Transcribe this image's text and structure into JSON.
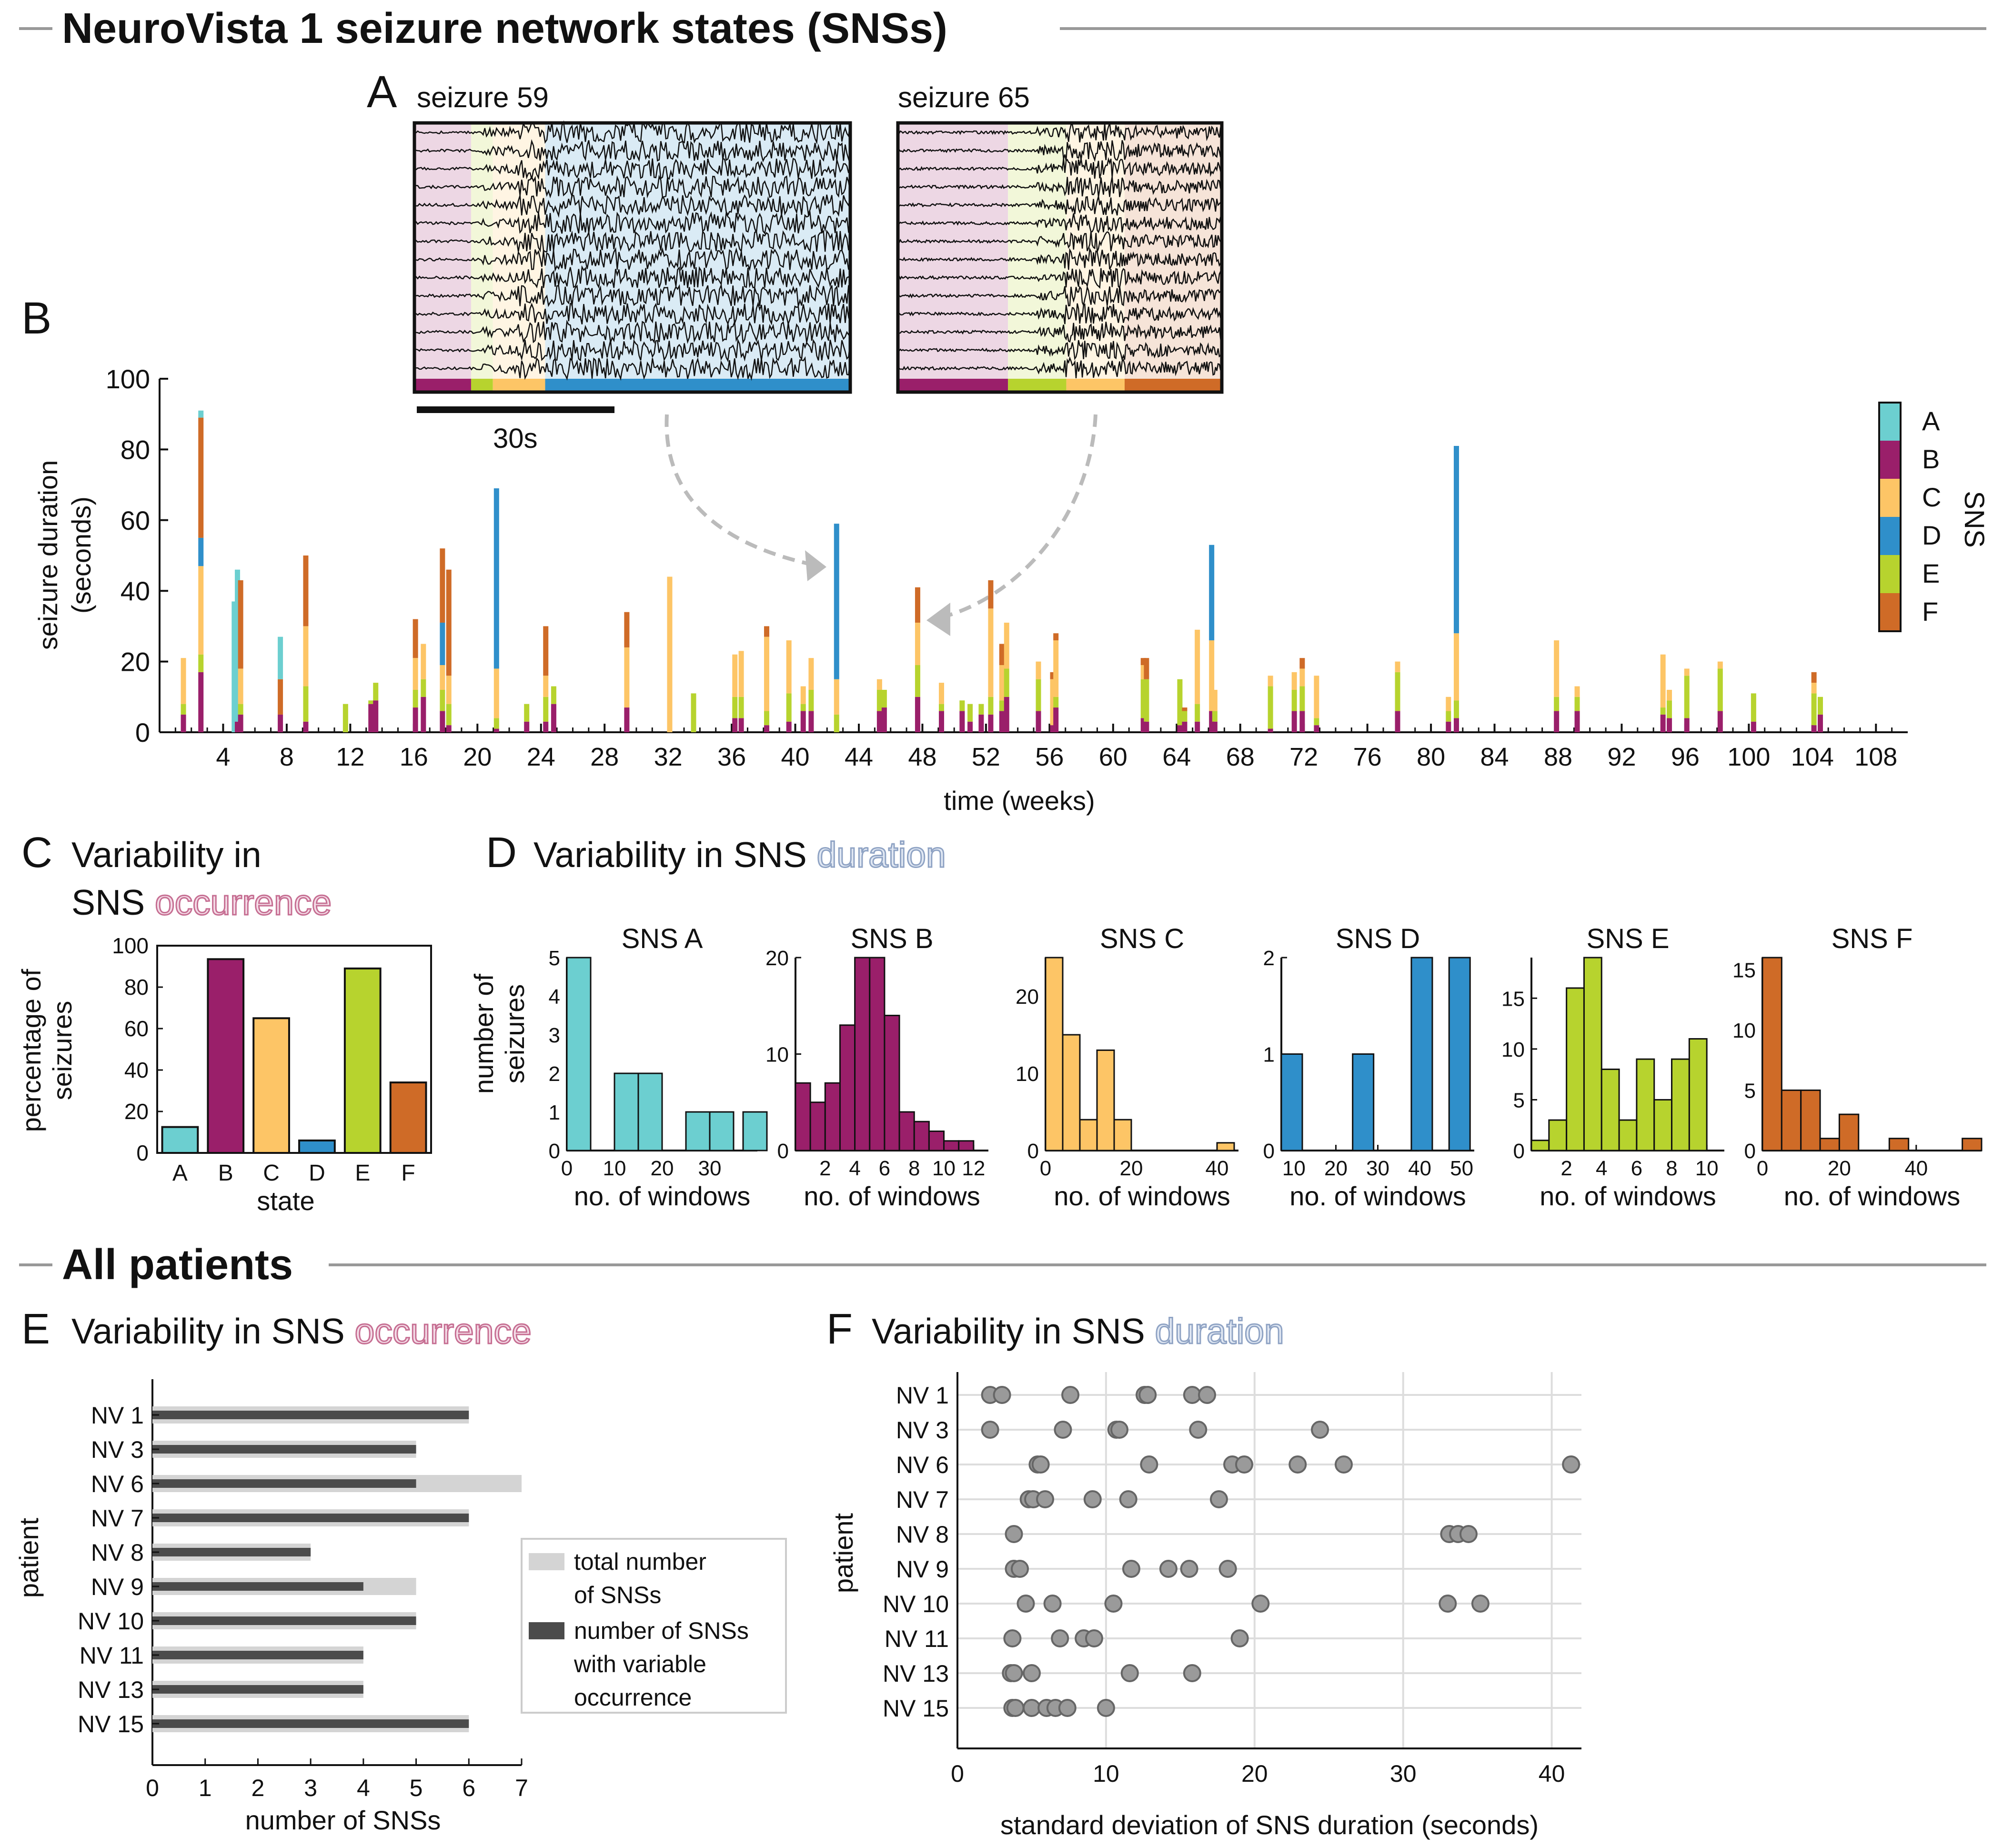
{
  "sections": {
    "top_title": "NeuroVista 1 seizure network states (SNSs)",
    "bottom_title": "All patients"
  },
  "colors": {
    "A": "#6ccfd0",
    "B": "#9a1f6a",
    "C": "#fdc566",
    "D": "#2f8fca",
    "E": "#b7d32e",
    "F": "#cf6b27",
    "occurrence": "#c66e92",
    "duration": "#8fa3c4",
    "grey_light": "#d4d4d4",
    "grey_dark": "#4b4b4b",
    "dot": "#9a9a9a"
  },
  "panelA": {
    "letter": "A",
    "seizure59": "seizure 59",
    "seizure65": "seizure 65",
    "scalebar": "30s",
    "seizure59_states": [
      {
        "state": "B",
        "frac": 0.13
      },
      {
        "state": "E",
        "frac": 0.05
      },
      {
        "state": "C",
        "frac": 0.12
      },
      {
        "state": "D",
        "frac": 0.7
      }
    ],
    "seizure65_states": [
      {
        "state": "B",
        "frac": 0.34
      },
      {
        "state": "E",
        "frac": 0.18
      },
      {
        "state": "C",
        "frac": 0.18
      },
      {
        "state": "F",
        "frac": 0.3
      }
    ]
  },
  "panelB": {
    "letter": "B",
    "ylabel1": "seizure duration",
    "ylabel2": "(seconds)",
    "xlabel": "time (weeks)",
    "legend_title": "SNS",
    "legend": [
      "A",
      "B",
      "C",
      "D",
      "E",
      "F"
    ],
    "yticks": [
      "0",
      "20",
      "40",
      "60",
      "80",
      "100"
    ],
    "xticks": [
      "4",
      "8",
      "12",
      "16",
      "20",
      "24",
      "28",
      "32",
      "36",
      "40",
      "44",
      "48",
      "52",
      "56",
      "60",
      "64",
      "68",
      "72",
      "76",
      "80",
      "84",
      "88",
      "92",
      "96",
      "100",
      "104",
      "108"
    ]
  },
  "panelC": {
    "letter": "C",
    "title1": "Variability in",
    "title2": "SNS ",
    "title2b": "occurrence",
    "ylabel1": "percentage of",
    "ylabel2": "seizures",
    "xlabel": "state",
    "yticks": [
      "0",
      "20",
      "40",
      "60",
      "80",
      "100"
    ]
  },
  "panelD": {
    "letter": "D",
    "title": "Variability in SNS ",
    "titleb": "duration",
    "ylabel1": "number of",
    "ylabel2": "seizures",
    "xlabel": "no. of windows"
  },
  "panelE": {
    "letter": "E",
    "title": "Variability in SNS ",
    "titleb": "occurrence",
    "ylabel": "patient",
    "xlabel": "number of SNSs",
    "legend1a": "total number",
    "legend1b": "of SNSs",
    "legend2a": "number of SNSs",
    "legend2b": "with variable",
    "legend2c": "occurrence",
    "xticks": [
      "0",
      "1",
      "2",
      "3",
      "4",
      "5",
      "6",
      "7"
    ]
  },
  "panelF": {
    "letter": "F",
    "title": "Variability in SNS ",
    "titleb": "duration",
    "ylabel": "patient",
    "xlabel": "standard deviation of SNS duration (seconds)",
    "xticks": [
      "0",
      "10",
      "20",
      "30",
      "40"
    ]
  },
  "chart_data": [
    {
      "id": "panelB",
      "type": "bar",
      "title": "",
      "xlabel": "time (weeks)",
      "ylabel": "seizure duration (seconds)",
      "xlim": [
        0,
        110
      ],
      "ylim": [
        0,
        100
      ],
      "stack_order": [
        "B",
        "E",
        "C",
        "D",
        "F",
        "A"
      ],
      "seizures": [
        {
          "week": 1.5,
          "B": 5,
          "E": 3,
          "C": 13
        },
        {
          "week": 2.6,
          "A": 2,
          "B": 17,
          "E": 5,
          "C": 25,
          "D": 8,
          "F": 34
        },
        {
          "week": 4.7,
          "A": 37
        },
        {
          "week": 4.9,
          "B": 3,
          "A": 43
        },
        {
          "week": 5.1,
          "B": 5,
          "E": 3,
          "C": 10,
          "F": 25
        },
        {
          "week": 7.6,
          "B": 5,
          "A": 12,
          "F": 10
        },
        {
          "week": 9.2,
          "B": 3,
          "E": 10,
          "C": 17,
          "F": 20
        },
        {
          "week": 11.7,
          "E": 8
        },
        {
          "week": 13.3,
          "B": 8,
          "E": 1
        },
        {
          "week": 13.6,
          "B": 9,
          "E": 5
        },
        {
          "week": 16.1,
          "B": 7,
          "E": 5,
          "C": 9,
          "F": 11
        },
        {
          "week": 16.6,
          "B": 10,
          "E": 5,
          "C": 10
        },
        {
          "week": 17.8,
          "B": 6,
          "E": 6,
          "C": 7,
          "D": 12,
          "F": 21
        },
        {
          "week": 18.2,
          "B": 2,
          "E": 6,
          "C": 8,
          "F": 30
        },
        {
          "week": 21.2,
          "B": 1,
          "E": 3,
          "C": 14,
          "D": 51
        },
        {
          "week": 23.1,
          "B": 3,
          "E": 5
        },
        {
          "week": 24.3,
          "B": 3,
          "E": 7,
          "C": 6,
          "F": 14
        },
        {
          "week": 24.8,
          "B": 8,
          "E": 5
        },
        {
          "week": 29.4,
          "B": 7,
          "C": 17,
          "F": 10
        },
        {
          "week": 32.1,
          "C": 44
        },
        {
          "week": 33.6,
          "E": 11
        },
        {
          "week": 36.2,
          "B": 4,
          "E": 6,
          "C": 12
        },
        {
          "week": 36.6,
          "B": 4,
          "E": 6,
          "C": 13
        },
        {
          "week": 38.2,
          "B": 2,
          "E": 4,
          "C": 21,
          "F": 3
        },
        {
          "week": 39.6,
          "B": 3,
          "E": 8,
          "C": 15
        },
        {
          "week": 40.5,
          "B": 6,
          "E": 2,
          "C": 5
        },
        {
          "week": 41.0,
          "B": 6,
          "E": 6,
          "C": 9
        },
        {
          "week": 42.6,
          "E": 5,
          "C": 10,
          "D": 44
        },
        {
          "week": 45.3,
          "B": 6,
          "E": 6,
          "C": 3
        },
        {
          "week": 45.6,
          "B": 7,
          "E": 5
        },
        {
          "week": 47.7,
          "B": 10,
          "E": 9,
          "C": 12,
          "F": 10
        },
        {
          "week": 49.2,
          "B": 6,
          "E": 2,
          "C": 6
        },
        {
          "week": 50.5,
          "B": 6,
          "E": 3
        },
        {
          "week": 51.0,
          "B": 3,
          "E": 5
        },
        {
          "week": 51.7,
          "B": 5,
          "E": 3
        },
        {
          "week": 52.3,
          "B": 5,
          "E": 5,
          "C": 25,
          "F": 8
        },
        {
          "week": 53.0,
          "B": 6,
          "E": 3,
          "C": 10,
          "F": 6
        },
        {
          "week": 53.3,
          "B": 10,
          "E": 8,
          "C": 13
        },
        {
          "week": 55.3,
          "B": 6,
          "E": 9,
          "C": 5
        },
        {
          "week": 56.2,
          "B": 2,
          "C": 13,
          "F": 2
        },
        {
          "week": 56.4,
          "B": 7,
          "E": 3,
          "C": 16,
          "F": 2
        },
        {
          "week": 61.9,
          "B": 4,
          "E": 11,
          "C": 4,
          "F": 2
        },
        {
          "week": 62.1,
          "B": 3,
          "E": 12,
          "F": 6
        },
        {
          "week": 64.2,
          "B": 2,
          "E": 13
        },
        {
          "week": 64.5,
          "B": 3,
          "E": 3,
          "F": 1
        },
        {
          "week": 65.3,
          "B": 3,
          "E": 5,
          "C": 21
        },
        {
          "week": 66.2,
          "B": 6,
          "C": 20,
          "D": 27
        },
        {
          "week": 66.4,
          "B": 3,
          "E": 3,
          "C": 6
        },
        {
          "week": 69.9,
          "B": 1,
          "E": 12,
          "C": 3
        },
        {
          "week": 71.4,
          "B": 6,
          "E": 6,
          "C": 5
        },
        {
          "week": 71.9,
          "B": 6,
          "E": 7,
          "C": 5,
          "F": 3
        },
        {
          "week": 72.8,
          "B": 2,
          "E": 2,
          "C": 12
        },
        {
          "week": 77.9,
          "B": 6,
          "E": 11,
          "C": 3
        },
        {
          "week": 81.1,
          "B": 3,
          "E": 3,
          "C": 4
        },
        {
          "week": 81.6,
          "B": 4,
          "E": 5,
          "C": 19,
          "D": 53
        },
        {
          "week": 87.9,
          "B": 6,
          "E": 4,
          "C": 16
        },
        {
          "week": 89.2,
          "B": 6,
          "E": 4,
          "C": 3
        },
        {
          "week": 94.6,
          "B": 5,
          "E": 2,
          "C": 15
        },
        {
          "week": 95.0,
          "B": 4,
          "E": 5,
          "C": 3
        },
        {
          "week": 96.1,
          "B": 4,
          "E": 12,
          "C": 2
        },
        {
          "week": 98.2,
          "B": 6,
          "E": 12,
          "C": 2
        },
        {
          "week": 100.3,
          "B": 3,
          "E": 8
        },
        {
          "week": 104.1,
          "B": 2,
          "E": 9,
          "C": 3,
          "F": 3
        },
        {
          "week": 104.5,
          "B": 5,
          "E": 5
        }
      ]
    },
    {
      "id": "panelC",
      "type": "bar",
      "categories": [
        "A",
        "B",
        "C",
        "D",
        "E",
        "F"
      ],
      "values": [
        12.5,
        93.5,
        65,
        6,
        89,
        34
      ],
      "xlabel": "state",
      "ylabel": "percentage of seizures",
      "ylim": [
        0,
        100
      ]
    },
    {
      "id": "panelD",
      "type": "bar",
      "xlabel": "no. of windows",
      "ylabel": "number of seizures",
      "histograms": [
        {
          "title": "SNS A",
          "state": "A",
          "xlim": [
            0,
            40
          ],
          "ylim": [
            0,
            5
          ],
          "xticks": [
            "0",
            "10",
            "20",
            "30"
          ],
          "yticks": [
            "0",
            "1",
            "2",
            "3",
            "4",
            "5"
          ],
          "bins": [
            [
              0,
              5,
              5
            ],
            [
              10,
              15,
              2
            ],
            [
              15,
              20,
              2
            ],
            [
              25,
              30,
              1
            ],
            [
              30,
              35,
              1
            ],
            [
              37,
              42,
              1
            ]
          ]
        },
        {
          "title": "SNS B",
          "state": "B",
          "xlim": [
            0,
            13
          ],
          "ylim": [
            0,
            20
          ],
          "xticks": [
            "2",
            "4",
            "6",
            "8",
            "10",
            "12"
          ],
          "yticks": [
            "0",
            "10",
            "20"
          ],
          "bins": [
            [
              0,
              1,
              7
            ],
            [
              1,
              2,
              5
            ],
            [
              2,
              3,
              7
            ],
            [
              3,
              4,
              13
            ],
            [
              4,
              5,
              20
            ],
            [
              5,
              6,
              20
            ],
            [
              6,
              7,
              14
            ],
            [
              7,
              8,
              4
            ],
            [
              8,
              9,
              3
            ],
            [
              9,
              10,
              2
            ],
            [
              10,
              11,
              1
            ],
            [
              11,
              12,
              1
            ]
          ]
        },
        {
          "title": "SNS C",
          "state": "C",
          "xlim": [
            0,
            45
          ],
          "ylim": [
            0,
            25
          ],
          "xticks": [
            "0",
            "20",
            "40"
          ],
          "yticks": [
            "0",
            "10",
            "20"
          ],
          "bins": [
            [
              0,
              4,
              25
            ],
            [
              4,
              8,
              15
            ],
            [
              8,
              12,
              4
            ],
            [
              12,
              16,
              13
            ],
            [
              16,
              20,
              4
            ],
            [
              40,
              44,
              1
            ]
          ]
        },
        {
          "title": "SNS D",
          "state": "D",
          "xlim": [
            7,
            53
          ],
          "ylim": [
            0,
            2
          ],
          "xticks": [
            "10",
            "20",
            "30",
            "40",
            "50"
          ],
          "yticks": [
            "0",
            "1",
            "2"
          ],
          "bins": [
            [
              7,
              12,
              1
            ],
            [
              24,
              29,
              1
            ],
            [
              38,
              43,
              2
            ],
            [
              47,
              52,
              2
            ]
          ]
        },
        {
          "title": "SNS E",
          "state": "E",
          "xlim": [
            0,
            11
          ],
          "ylim": [
            0,
            19
          ],
          "xticks": [
            "2",
            "4",
            "6",
            "8",
            "10"
          ],
          "yticks": [
            "0",
            "5",
            "10",
            "15"
          ],
          "bins": [
            [
              0,
              1,
              1
            ],
            [
              1,
              2,
              3
            ],
            [
              2,
              3,
              16
            ],
            [
              3,
              4,
              19
            ],
            [
              4,
              5,
              8
            ],
            [
              5,
              6,
              3
            ],
            [
              6,
              7,
              9
            ],
            [
              7,
              8,
              5
            ],
            [
              8,
              9,
              9
            ],
            [
              9,
              10,
              11
            ]
          ]
        },
        {
          "title": "SNS F",
          "state": "F",
          "xlim": [
            0,
            57
          ],
          "ylim": [
            0,
            16
          ],
          "xticks": [
            "0",
            "20",
            "40"
          ],
          "yticks": [
            "0",
            "5",
            "10",
            "15"
          ],
          "bins": [
            [
              0,
              5,
              16
            ],
            [
              5,
              10,
              5
            ],
            [
              10,
              15,
              5
            ],
            [
              15,
              20,
              1
            ],
            [
              20,
              25,
              3
            ],
            [
              33,
              38,
              1
            ],
            [
              52,
              57,
              1
            ]
          ]
        }
      ]
    },
    {
      "id": "panelE",
      "type": "bar",
      "orientation": "horizontal",
      "categories": [
        "NV 1",
        "NV 3",
        "NV 6",
        "NV 7",
        "NV 8",
        "NV 9",
        "NV 10",
        "NV 11",
        "NV 13",
        "NV 15"
      ],
      "series": [
        {
          "name": "total number of SNSs",
          "values": [
            6,
            5,
            7,
            6,
            3,
            5,
            5,
            4,
            4,
            6
          ]
        },
        {
          "name": "number of SNSs with variable occurrence",
          "values": [
            6,
            5,
            5,
            6,
            3,
            4,
            5,
            4,
            4,
            6
          ]
        }
      ],
      "xlabel": "number of SNSs",
      "ylabel": "patient",
      "xlim": [
        0,
        7
      ]
    },
    {
      "id": "panelF",
      "type": "scatter",
      "categories": [
        "NV 1",
        "NV 3",
        "NV 6",
        "NV 7",
        "NV 8",
        "NV 9",
        "NV 10",
        "NV 11",
        "NV 13",
        "NV 15"
      ],
      "values": [
        [
          2.2,
          3.0,
          7.6,
          12.6,
          12.8,
          15.8,
          16.8
        ],
        [
          2.2,
          7.1,
          10.7,
          10.9,
          16.2,
          24.4
        ],
        [
          5.4,
          5.6,
          12.9,
          18.5,
          19.3,
          22.9,
          26.0,
          41.3
        ],
        [
          4.8,
          5.1,
          5.9,
          9.1,
          11.5,
          17.6
        ],
        [
          3.8,
          33.1,
          33.7,
          34.4
        ],
        [
          3.8,
          4.2,
          11.7,
          14.2,
          15.6,
          18.2
        ],
        [
          4.6,
          6.4,
          10.5,
          20.4,
          33.0,
          35.2
        ],
        [
          3.7,
          6.9,
          8.5,
          9.2,
          19.0
        ],
        [
          3.6,
          3.8,
          5.0,
          11.6,
          15.8
        ],
        [
          3.7,
          3.9,
          5.0,
          6.0,
          6.6,
          7.4,
          10.0
        ]
      ],
      "xlabel": "standard deviation of SNS duration (seconds)",
      "ylabel": "patient",
      "xlim": [
        0,
        42
      ],
      "grid": true
    }
  ]
}
